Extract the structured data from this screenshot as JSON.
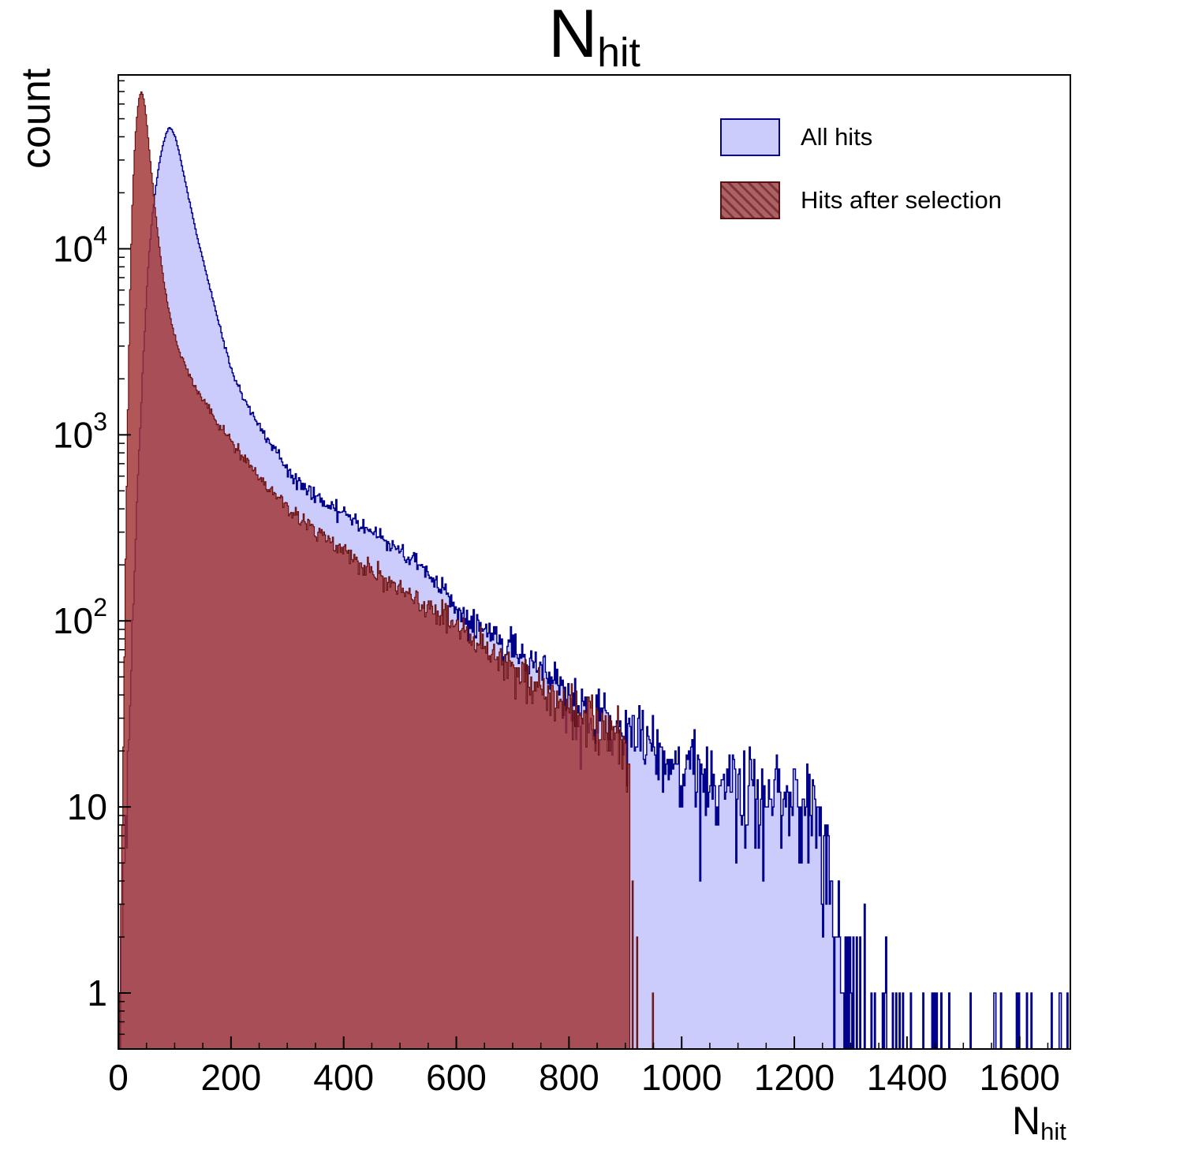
{
  "title": {
    "main": "N",
    "sub": "hit"
  },
  "axes": {
    "x": {
      "label_main": "N",
      "label_sub": "hit",
      "ticks": [
        0,
        200,
        400,
        600,
        800,
        1000,
        1200,
        1400,
        1600
      ],
      "minor_step": 50,
      "range": [
        0,
        1690
      ]
    },
    "y": {
      "label": "count",
      "scale": "log",
      "range": [
        0.5,
        86000
      ],
      "ticks": [
        {
          "base": "1",
          "exp": "",
          "value": 1
        },
        {
          "base": "10",
          "exp": "",
          "value": 10
        },
        {
          "base": "10",
          "exp": "2",
          "value": 100
        },
        {
          "base": "10",
          "exp": "3",
          "value": 1000
        },
        {
          "base": "10",
          "exp": "4",
          "value": 10000
        }
      ]
    }
  },
  "legend": {
    "items": [
      {
        "label": "All hits",
        "fill": "#ccccfc",
        "border": "#00008c",
        "hatch": false
      },
      {
        "label": "Hits after selection",
        "fill": "rgba(165,80,80,0.9)",
        "border": "#5a1010",
        "hatch": true
      }
    ]
  },
  "chart_data": {
    "type": "area",
    "subtype": "overlaid-histograms-log-y",
    "title": "N_hit",
    "xlabel": "N_hit",
    "ylabel": "count",
    "x_range": [
      0,
      1690
    ],
    "y_range": [
      0.5,
      86000
    ],
    "y_scale": "log",
    "grid": false,
    "legend_position": "top-right-inside",
    "bin_width": 2,
    "series": [
      {
        "id": "all_hits",
        "name": "All hits",
        "color_fill": "#ccccfc",
        "color_line": "#00008c",
        "line_width": 1.5,
        "peak": {
          "x": 90,
          "count": 45000
        },
        "anchors": [
          [
            0,
            0.5
          ],
          [
            6,
            1.5
          ],
          [
            12,
            6
          ],
          [
            18,
            22
          ],
          [
            24,
            75
          ],
          [
            30,
            230
          ],
          [
            36,
            700
          ],
          [
            42,
            1800
          ],
          [
            48,
            4300
          ],
          [
            54,
            8800
          ],
          [
            60,
            14500
          ],
          [
            66,
            21000
          ],
          [
            72,
            28000
          ],
          [
            78,
            35000
          ],
          [
            84,
            41000
          ],
          [
            90,
            44800
          ],
          [
            96,
            43600
          ],
          [
            102,
            39000
          ],
          [
            108,
            33000
          ],
          [
            114,
            27200
          ],
          [
            120,
            22200
          ],
          [
            126,
            18200
          ],
          [
            132,
            15000
          ],
          [
            138,
            12400
          ],
          [
            144,
            10400
          ],
          [
            150,
            8800
          ],
          [
            158,
            7000
          ],
          [
            166,
            5600
          ],
          [
            174,
            4500
          ],
          [
            182,
            3650
          ],
          [
            190,
            2950
          ],
          [
            200,
            2300
          ],
          [
            210,
            1900
          ],
          [
            220,
            1640
          ],
          [
            232,
            1400
          ],
          [
            245,
            1180
          ],
          [
            258,
            1010
          ],
          [
            272,
            880
          ],
          [
            286,
            770
          ],
          [
            300,
            640
          ],
          [
            320,
            560
          ],
          [
            340,
            500
          ],
          [
            360,
            445
          ],
          [
            380,
            410
          ],
          [
            400,
            380
          ],
          [
            420,
            345
          ],
          [
            440,
            315
          ],
          [
            460,
            290
          ],
          [
            480,
            262
          ],
          [
            500,
            235
          ],
          [
            520,
            210
          ],
          [
            540,
            188
          ],
          [
            560,
            165
          ],
          [
            580,
            140
          ],
          [
            600,
            118
          ],
          [
            620,
            105
          ],
          [
            640,
            95
          ],
          [
            660,
            86
          ],
          [
            680,
            77
          ],
          [
            700,
            69
          ],
          [
            720,
            62
          ],
          [
            740,
            56
          ],
          [
            760,
            50
          ],
          [
            780,
            44
          ],
          [
            800,
            39
          ],
          [
            820,
            35
          ],
          [
            840,
            32
          ],
          [
            860,
            29
          ],
          [
            880,
            27
          ],
          [
            900,
            25
          ],
          [
            920,
            23
          ],
          [
            940,
            21.5
          ],
          [
            960,
            20
          ],
          [
            980,
            18.5
          ],
          [
            1000,
            17
          ],
          [
            1030,
            15.5
          ],
          [
            1060,
            14.2
          ],
          [
            1090,
            13.2
          ],
          [
            1120,
            12.4
          ],
          [
            1150,
            11.6
          ],
          [
            1180,
            11
          ],
          [
            1210,
            10.5
          ],
          [
            1240,
            10
          ],
          [
            1250,
            6
          ],
          [
            1258,
            4
          ],
          [
            1268,
            2.5
          ],
          [
            1280,
            1.8
          ],
          [
            1295,
            1.2
          ],
          [
            1310,
            0.8
          ],
          [
            1330,
            0.5
          ],
          [
            1360,
            0.3
          ],
          [
            1400,
            0.18
          ],
          [
            1450,
            0.13
          ],
          [
            1520,
            0.1
          ],
          [
            1600,
            0.09
          ],
          [
            1690,
            0.11
          ]
        ]
      },
      {
        "id": "hits_after_selection",
        "name": "Hits after selection",
        "color_fill": "rgba(160,50,50,0.82)",
        "color_line": "#6a1212",
        "line_width": 1.2,
        "peak": {
          "x": 40,
          "count": 70000
        },
        "cut": 907,
        "tail_spikes": [
          [
            913,
            4
          ],
          [
            921,
            2
          ],
          [
            948,
            1
          ]
        ],
        "anchors": [
          [
            0,
            0.5
          ],
          [
            4,
            2
          ],
          [
            8,
            14
          ],
          [
            12,
            120
          ],
          [
            16,
            900
          ],
          [
            20,
            4500
          ],
          [
            24,
            14000
          ],
          [
            28,
            30000
          ],
          [
            32,
            48000
          ],
          [
            36,
            62000
          ],
          [
            40,
            70000
          ],
          [
            44,
            67000
          ],
          [
            48,
            56000
          ],
          [
            52,
            43000
          ],
          [
            56,
            31500
          ],
          [
            60,
            24000
          ],
          [
            64,
            18000
          ],
          [
            68,
            13800
          ],
          [
            72,
            10800
          ],
          [
            76,
            8600
          ],
          [
            80,
            7000
          ],
          [
            86,
            5400
          ],
          [
            92,
            4300
          ],
          [
            98,
            3600
          ],
          [
            104,
            3100
          ],
          [
            110,
            2750
          ],
          [
            118,
            2400
          ],
          [
            126,
            2120
          ],
          [
            134,
            1890
          ],
          [
            142,
            1700
          ],
          [
            150,
            1540
          ],
          [
            160,
            1380
          ],
          [
            170,
            1240
          ],
          [
            180,
            1120
          ],
          [
            190,
            1020
          ],
          [
            200,
            930
          ],
          [
            215,
            800
          ],
          [
            230,
            700
          ],
          [
            245,
            620
          ],
          [
            260,
            550
          ],
          [
            280,
            475
          ],
          [
            300,
            415
          ],
          [
            320,
            365
          ],
          [
            340,
            325
          ],
          [
            360,
            292
          ],
          [
            380,
            262
          ],
          [
            400,
            237
          ],
          [
            430,
            205
          ],
          [
            460,
            180
          ],
          [
            490,
            158
          ],
          [
            520,
            138
          ],
          [
            550,
            120
          ],
          [
            580,
            104
          ],
          [
            610,
            90
          ],
          [
            640,
            78
          ],
          [
            670,
            65
          ],
          [
            700,
            55
          ],
          [
            730,
            48
          ],
          [
            760,
            42
          ],
          [
            790,
            37
          ],
          [
            820,
            32
          ],
          [
            850,
            28
          ],
          [
            880,
            24
          ],
          [
            907,
            21
          ]
        ]
      }
    ]
  }
}
